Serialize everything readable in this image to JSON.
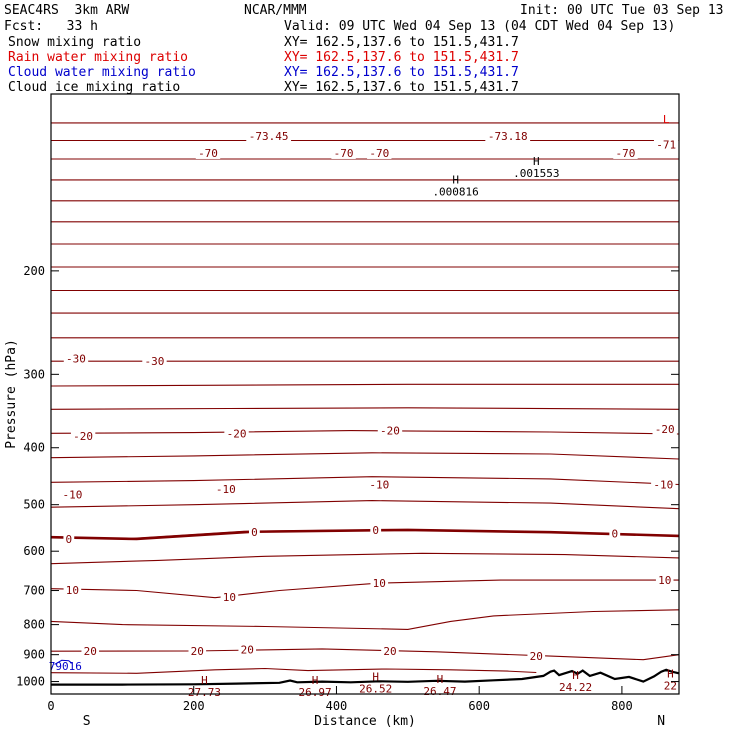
{
  "header": {
    "model": "SEAC4RS  3km ARW",
    "org": "NCAR/MMM",
    "init": "Init: 00 UTC Tue 03 Sep 13",
    "fcst": "Fcst:   33 h",
    "valid": "Valid: 09 UTC Wed 04 Sep 13 (04 CDT Wed 04 Sep 13)"
  },
  "fields": [
    {
      "name": "Snow mixing ratio",
      "xy": "XY= 162.5,137.6 to 151.5,431.7",
      "color": "#000000"
    },
    {
      "name": "Rain water mixing ratio",
      "xy": "XY= 162.5,137.6 to 151.5,431.7",
      "color": "#dd0000"
    },
    {
      "name": "Cloud water mixing ratio",
      "xy": "XY= 162.5,137.6 to 151.5,431.7",
      "color": "#0000cc"
    },
    {
      "name": "Cloud ice mixing ratio",
      "xy": "XY= 162.5,137.6 to 151.5,431.7",
      "color": "#000000"
    }
  ],
  "chart_data": {
    "type": "line",
    "xlabel": "Distance (km)",
    "ylabel": "Pressure (hPa)",
    "xlim": [
      0,
      880
    ],
    "ylim": [
      100,
      1050
    ],
    "y_scale": "log",
    "x_ticks": [
      0,
      200,
      400,
      600,
      800
    ],
    "y_ticks": [
      200,
      300,
      400,
      500,
      600,
      700,
      800,
      900,
      1000
    ],
    "orientation": {
      "left": "S",
      "right": "N"
    },
    "contour_color": "#800000",
    "zero_isotherm_color": "#800000",
    "terrain_color": "#000000",
    "isotherms": [
      {
        "x": [
          0,
          880
        ],
        "y": [
          112,
          112
        ]
      },
      {
        "x": [
          0,
          880
        ],
        "y": [
          120,
          120
        ]
      },
      {
        "x": [
          0,
          880
        ],
        "y": [
          129,
          129
        ]
      },
      {
        "x": [
          0,
          880
        ],
        "y": [
          140,
          140
        ]
      },
      {
        "x": [
          0,
          880
        ],
        "y": [
          152,
          152
        ]
      },
      {
        "x": [
          0,
          880
        ],
        "y": [
          165,
          165
        ]
      },
      {
        "x": [
          0,
          880
        ],
        "y": [
          180,
          180
        ]
      },
      {
        "x": [
          0,
          880
        ],
        "y": [
          197,
          197
        ]
      },
      {
        "x": [
          0,
          880
        ],
        "y": [
          216,
          216
        ]
      },
      {
        "x": [
          0,
          880
        ],
        "y": [
          236,
          236
        ]
      },
      {
        "x": [
          0,
          880
        ],
        "y": [
          260,
          260
        ]
      },
      {
        "x": [
          0,
          880
        ],
        "y": [
          285,
          285
        ]
      },
      {
        "x": [
          0,
          250,
          500,
          880
        ],
        "y": [
          314,
          313,
          312,
          312
        ]
      },
      {
        "x": [
          0,
          250,
          500,
          880
        ],
        "y": [
          344,
          343,
          342,
          344
        ]
      },
      {
        "x": [
          0,
          200,
          420,
          700,
          880
        ],
        "y": [
          378,
          377,
          374,
          376,
          379
        ]
      },
      {
        "x": [
          0,
          200,
          450,
          700,
          880
        ],
        "y": [
          416,
          413,
          408,
          410,
          418
        ]
      },
      {
        "x": [
          0,
          200,
          450,
          700,
          880
        ],
        "y": [
          458,
          455,
          448,
          452,
          462
        ]
      },
      {
        "x": [
          0,
          200,
          450,
          700,
          880
        ],
        "y": [
          505,
          500,
          492,
          497,
          508
        ]
      },
      {
        "x": [
          0,
          100,
          270,
          500,
          700,
          880
        ],
        "y": [
          568,
          572,
          555,
          551,
          557,
          565
        ]
      },
      {
        "x": [
          0,
          150,
          300,
          520,
          720,
          880
        ],
        "y": [
          630,
          622,
          612,
          605,
          608,
          616
        ]
      },
      {
        "x": [
          0,
          120,
          230,
          320,
          460,
          630,
          880
        ],
        "y": [
          695,
          700,
          720,
          700,
          680,
          672,
          672
        ]
      },
      {
        "x": [
          0,
          100,
          300,
          500,
          560,
          620,
          760,
          880
        ],
        "y": [
          790,
          800,
          806,
          815,
          790,
          773,
          760,
          755
        ]
      },
      {
        "x": [
          0,
          200,
          380,
          540,
          700,
          830,
          880
        ],
        "y": [
          888,
          887,
          880,
          890,
          905,
          918,
          900
        ]
      },
      {
        "x": [
          0,
          120,
          230,
          300,
          360,
          470,
          560,
          640,
          680
        ],
        "y": [
          966,
          968,
          955,
          950,
          958,
          952,
          955,
          960,
          965
        ]
      }
    ],
    "zero_isotherm": {
      "x": [
        0,
        120,
        280,
        500,
        700,
        880
      ],
      "y": [
        568,
        572,
        556,
        552,
        557,
        565
      ]
    },
    "isotherm_labels": [
      {
        "text": "-70",
        "x": 220,
        "y": 126
      },
      {
        "text": "-73.45",
        "x": 305,
        "y": 118
      },
      {
        "text": "-70",
        "x": 410,
        "y": 126
      },
      {
        "text": "-70",
        "x": 460,
        "y": 126
      },
      {
        "text": "-73.18",
        "x": 640,
        "y": 118
      },
      {
        "text": "-70",
        "x": 805,
        "y": 126
      },
      {
        "text": "-71",
        "x": 862,
        "y": 122
      },
      {
        "text": "-30",
        "x": 35,
        "y": 282
      },
      {
        "text": "-30",
        "x": 145,
        "y": 285
      },
      {
        "text": "-20",
        "x": 45,
        "y": 382
      },
      {
        "text": "-20",
        "x": 260,
        "y": 378
      },
      {
        "text": "-20",
        "x": 475,
        "y": 374
      },
      {
        "text": "-20",
        "x": 860,
        "y": 372
      },
      {
        "text": "-10",
        "x": 30,
        "y": 480
      },
      {
        "text": "-10",
        "x": 245,
        "y": 470
      },
      {
        "text": "-10",
        "x": 460,
        "y": 462
      },
      {
        "text": "-10",
        "x": 858,
        "y": 462
      },
      {
        "text": "0",
        "x": 25,
        "y": 572
      },
      {
        "text": "0",
        "x": 285,
        "y": 556
      },
      {
        "text": "0",
        "x": 455,
        "y": 552
      },
      {
        "text": "0",
        "x": 790,
        "y": 560
      },
      {
        "text": "10",
        "x": 460,
        "y": 680
      },
      {
        "text": "10",
        "x": 860,
        "y": 672
      },
      {
        "text": "10",
        "x": 30,
        "y": 698
      },
      {
        "text": "10",
        "x": 250,
        "y": 718
      },
      {
        "text": "20",
        "x": 55,
        "y": 888
      },
      {
        "text": "20",
        "x": 205,
        "y": 887
      },
      {
        "text": "20",
        "x": 275,
        "y": 882
      },
      {
        "text": "20",
        "x": 475,
        "y": 888
      },
      {
        "text": "20",
        "x": 680,
        "y": 905
      }
    ],
    "extrema": [
      {
        "text": "H",
        "value": ".000816",
        "x": 567,
        "y": 142
      },
      {
        "text": "H",
        "value": ".001553",
        "x": 680,
        "y": 132
      },
      {
        "text": "H",
        "value": "27.73",
        "x": 215,
        "y": 1010
      },
      {
        "text": "H",
        "value": "26.97",
        "x": 370,
        "y": 1010
      },
      {
        "text": "H",
        "value": "26.52",
        "x": 455,
        "y": 996
      },
      {
        "text": "H",
        "value": "26.47",
        "x": 545,
        "y": 1005
      },
      {
        "text": "H",
        "value": "24.22",
        "x": 735,
        "y": 990
      },
      {
        "text": "H",
        "value": "22",
        "x": 868,
        "y": 985
      },
      {
        "text": "L",
        "value": "",
        "x": 862,
        "y": 112
      }
    ],
    "cloud_water": {
      "x": [
        5,
        15,
        25,
        30
      ],
      "y": [
        935,
        920,
        922,
        932
      ],
      "label": "79016",
      "label_x": 20,
      "label_y": 955
    },
    "terrain": {
      "x": [
        0,
        100,
        200,
        260,
        320,
        335,
        345,
        380,
        420,
        460,
        500,
        540,
        580,
        620,
        660,
        690,
        700,
        705,
        712,
        720,
        730,
        738,
        745,
        755,
        770,
        790,
        810,
        830,
        845,
        855,
        862,
        870,
        880
      ],
      "y": [
        1012,
        1012,
        1011,
        1008,
        1005,
        996,
        1003,
        1000,
        1003,
        999,
        1001,
        997,
        1000,
        995,
        990,
        978,
        962,
        958,
        975,
        968,
        960,
        970,
        958,
        978,
        966,
        990,
        982,
        1000,
        980,
        962,
        955,
        962,
        968
      ]
    }
  }
}
